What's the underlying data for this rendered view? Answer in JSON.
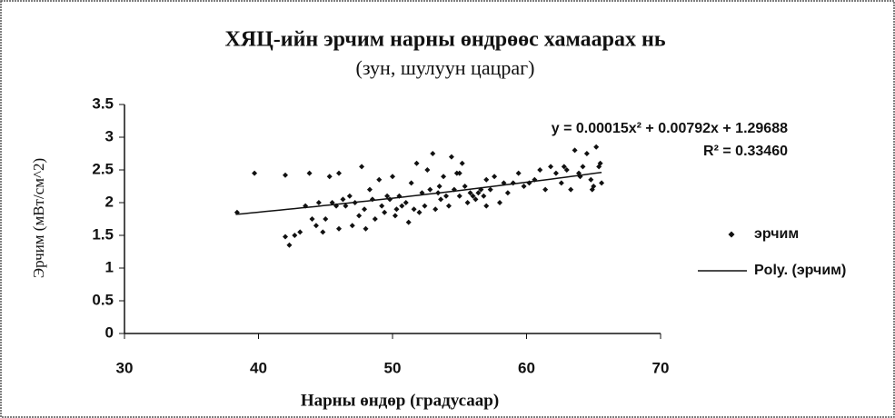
{
  "chart_data": {
    "type": "scatter",
    "title": "ХЯЦ-ийн эрчим нарны өндрөөс хамаарах нь",
    "subtitle": "(зун, шулуун цацраг)",
    "xlabel": "Нарны өндөр (градусаар)",
    "ylabel": "Эрчим (мВт/см^2)",
    "xlim": [
      30,
      70
    ],
    "xticks": [
      30,
      40,
      50,
      60,
      70
    ],
    "ylim": [
      0,
      3.5
    ],
    "yticks": [
      0,
      0.5,
      1,
      1.5,
      2,
      2.5,
      3,
      3.5
    ],
    "series": [
      {
        "name": "эрчим",
        "color": "#111111",
        "x": [
          38.4,
          39.7,
          42.0,
          42.0,
          42.3,
          42.7,
          43.1,
          43.5,
          43.8,
          44.0,
          44.3,
          44.5,
          44.8,
          45.0,
          45.3,
          45.5,
          45.8,
          46.0,
          46.3,
          46.5,
          46.8,
          47.0,
          47.2,
          47.5,
          47.7,
          47.9,
          48.0,
          48.3,
          48.5,
          48.7,
          49.0,
          49.2,
          49.4,
          49.6,
          49.8,
          50.0,
          50.2,
          50.5,
          50.7,
          51.0,
          51.2,
          51.4,
          51.6,
          51.8,
          52.0,
          52.2,
          52.4,
          52.6,
          52.8,
          53.0,
          53.2,
          53.4,
          53.6,
          53.8,
          54.0,
          54.2,
          54.4,
          54.6,
          54.8,
          55.0,
          55.2,
          55.4,
          55.6,
          55.8,
          56.0,
          56.2,
          56.4,
          56.6,
          56.8,
          57.0,
          57.3,
          57.6,
          58.0,
          58.3,
          58.6,
          59.0,
          59.4,
          59.8,
          60.2,
          60.6,
          61.0,
          61.4,
          61.8,
          62.2,
          62.6,
          63.0,
          63.3,
          63.6,
          63.9,
          64.2,
          64.5,
          64.8,
          65.0,
          65.2,
          65.4,
          65.6,
          64.9,
          65.5,
          64.0,
          62.8,
          57.0,
          53.5,
          50.3,
          46.0,
          55.0
        ],
        "values": [
          1.85,
          2.45,
          2.42,
          1.48,
          1.35,
          1.5,
          1.55,
          1.95,
          2.45,
          1.75,
          1.65,
          2.0,
          1.55,
          1.75,
          2.4,
          2.0,
          1.95,
          2.45,
          2.05,
          1.95,
          2.1,
          1.65,
          2.0,
          1.8,
          2.55,
          1.9,
          1.6,
          2.2,
          2.05,
          1.75,
          2.35,
          1.95,
          1.85,
          2.1,
          2.05,
          2.4,
          1.8,
          2.1,
          1.95,
          2.0,
          1.7,
          2.3,
          1.9,
          2.6,
          1.85,
          2.15,
          1.95,
          2.5,
          2.2,
          2.75,
          1.9,
          2.15,
          2.05,
          2.4,
          2.1,
          1.95,
          2.7,
          2.2,
          2.45,
          2.1,
          2.6,
          2.25,
          2.0,
          2.15,
          2.1,
          2.05,
          2.15,
          2.2,
          2.1,
          1.95,
          2.2,
          2.4,
          2.0,
          2.3,
          2.15,
          2.3,
          2.45,
          2.25,
          2.3,
          2.35,
          2.5,
          2.2,
          2.55,
          2.45,
          2.3,
          2.5,
          2.2,
          2.8,
          2.45,
          2.55,
          2.75,
          2.35,
          2.25,
          2.85,
          2.55,
          2.3,
          2.2,
          2.6,
          2.4,
          2.55,
          2.35,
          2.25,
          1.9,
          1.6,
          2.45
        ]
      }
    ],
    "trendline": {
      "name": "Poly. (эрчим)",
      "coefficients": [
        0.00015,
        0.00792,
        1.29688
      ],
      "x_range": [
        38.3,
        65.6
      ],
      "equation": "y = 0.00015x² + 0.00792x + 1.29688",
      "r2_label": "R² = 0.33460",
      "color": "#111111"
    },
    "legend": "right"
  }
}
